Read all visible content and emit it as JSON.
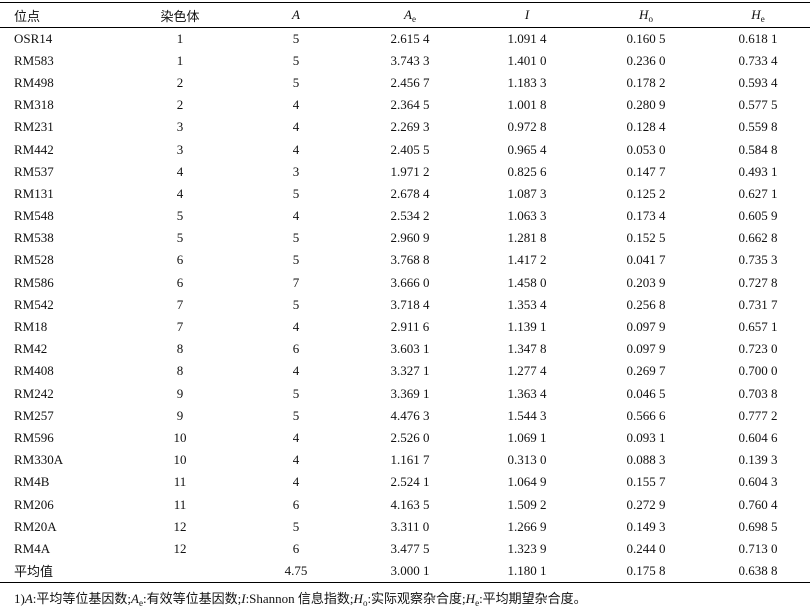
{
  "table": {
    "columns": [
      {
        "text": "位点"
      },
      {
        "text": "染色体"
      },
      {
        "text": "A"
      },
      {
        "text": "A",
        "sub": "e"
      },
      {
        "text": "I"
      },
      {
        "text": "H",
        "sub": "o"
      },
      {
        "text": "H",
        "sub": "e"
      }
    ],
    "rows": [
      [
        "OSR14",
        "1",
        "5",
        "2.615 4",
        "1.091 4",
        "0.160 5",
        "0.618 1"
      ],
      [
        "RM583",
        "1",
        "5",
        "3.743 3",
        "1.401 0",
        "0.236 0",
        "0.733 4"
      ],
      [
        "RM498",
        "2",
        "5",
        "2.456 7",
        "1.183 3",
        "0.178 2",
        "0.593 4"
      ],
      [
        "RM318",
        "2",
        "4",
        "2.364 5",
        "1.001 8",
        "0.280 9",
        "0.577 5"
      ],
      [
        "RM231",
        "3",
        "4",
        "2.269 3",
        "0.972 8",
        "0.128 4",
        "0.559 8"
      ],
      [
        "RM442",
        "3",
        "4",
        "2.405 5",
        "0.965 4",
        "0.053 0",
        "0.584 8"
      ],
      [
        "RM537",
        "4",
        "3",
        "1.971 2",
        "0.825 6",
        "0.147 7",
        "0.493 1"
      ],
      [
        "RM131",
        "4",
        "5",
        "2.678 4",
        "1.087 3",
        "0.125 2",
        "0.627 1"
      ],
      [
        "RM548",
        "5",
        "4",
        "2.534 2",
        "1.063 3",
        "0.173 4",
        "0.605 9"
      ],
      [
        "RM538",
        "5",
        "5",
        "2.960 9",
        "1.281 8",
        "0.152 5",
        "0.662 8"
      ],
      [
        "RM528",
        "6",
        "5",
        "3.768 8",
        "1.417 2",
        "0.041 7",
        "0.735 3"
      ],
      [
        "RM586",
        "6",
        "7",
        "3.666 0",
        "1.458 0",
        "0.203 9",
        "0.727 8"
      ],
      [
        "RM542",
        "7",
        "5",
        "3.718 4",
        "1.353 4",
        "0.256 8",
        "0.731 7"
      ],
      [
        "RM18",
        "7",
        "4",
        "2.911 6",
        "1.139 1",
        "0.097 9",
        "0.657 1"
      ],
      [
        "RM42",
        "8",
        "6",
        "3.603 1",
        "1.347 8",
        "0.097 9",
        "0.723 0"
      ],
      [
        "RM408",
        "8",
        "4",
        "3.327 1",
        "1.277 4",
        "0.269 7",
        "0.700 0"
      ],
      [
        "RM242",
        "9",
        "5",
        "3.369 1",
        "1.363 4",
        "0.046 5",
        "0.703 8"
      ],
      [
        "RM257",
        "9",
        "5",
        "4.476 3",
        "1.544 3",
        "0.566 6",
        "0.777 2"
      ],
      [
        "RM596",
        "10",
        "4",
        "2.526 0",
        "1.069 1",
        "0.093 1",
        "0.604 6"
      ],
      [
        "RM330A",
        "10",
        "4",
        "1.161 7",
        "0.313 0",
        "0.088 3",
        "0.139 3"
      ],
      [
        "RM4B",
        "11",
        "4",
        "2.524 1",
        "1.064 9",
        "0.155 7",
        "0.604 3"
      ],
      [
        "RM206",
        "11",
        "6",
        "4.163 5",
        "1.509 2",
        "0.272 9",
        "0.760 4"
      ],
      [
        "RM20A",
        "12",
        "5",
        "3.311 0",
        "1.266 9",
        "0.149 3",
        "0.698 5"
      ],
      [
        "RM4A",
        "12",
        "6",
        "3.477 5",
        "1.323 9",
        "0.244 0",
        "0.713 0"
      ]
    ],
    "summary": {
      "label": "平均值",
      "values": [
        "4.75",
        "3.000 1",
        "1.180 1",
        "0.175 8",
        "0.638 8"
      ]
    }
  },
  "footnote": {
    "prefix": "1)",
    "items": [
      {
        "symbol": "A",
        "text": ":平均等位基因数;"
      },
      {
        "symbol": "A",
        "sub": "e",
        "text": ":有效等位基因数;"
      },
      {
        "symbol": "I",
        "text": ":Shannon 信息指数;"
      },
      {
        "symbol": "H",
        "sub": "o",
        "text": ":实际观察杂合度;"
      },
      {
        "symbol": "H",
        "sub": "e",
        "text": ":平均期望杂合度。"
      }
    ]
  }
}
